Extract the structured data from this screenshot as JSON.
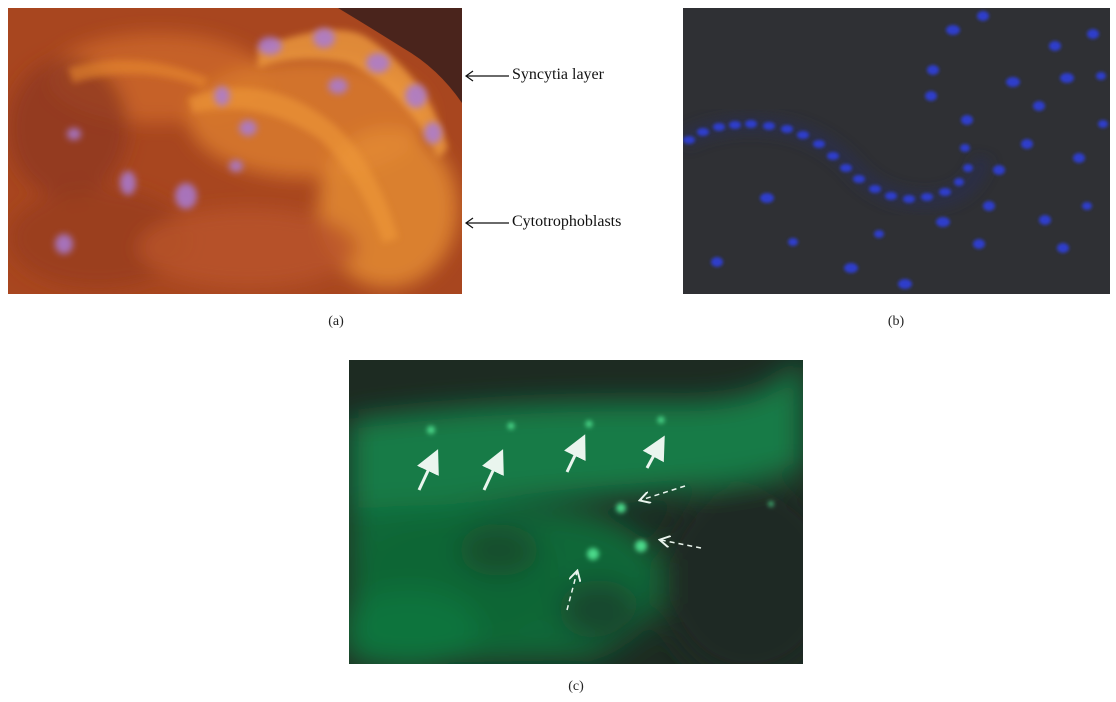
{
  "figure": {
    "panels": [
      {
        "id": "a",
        "caption": "(a)"
      },
      {
        "id": "b",
        "caption": "(b)"
      },
      {
        "id": "c",
        "caption": "(c)"
      }
    ],
    "annotations": {
      "syncytia_layer": "Syncytia layer",
      "cytotrophoblasts": "Cytotrophoblasts"
    },
    "colors": {
      "panel_a_base": "#b34f22",
      "panel_a_highlight": "#f0932e",
      "panel_a_nuclei": "#a879d6",
      "panel_b_base": "#2e2f33",
      "panel_b_nuclei": "#2d3cc9",
      "panel_c_base": "#0f5a2e",
      "panel_c_dark": "#1e2b22",
      "panel_c_arrows": "#e8f4ec"
    }
  }
}
